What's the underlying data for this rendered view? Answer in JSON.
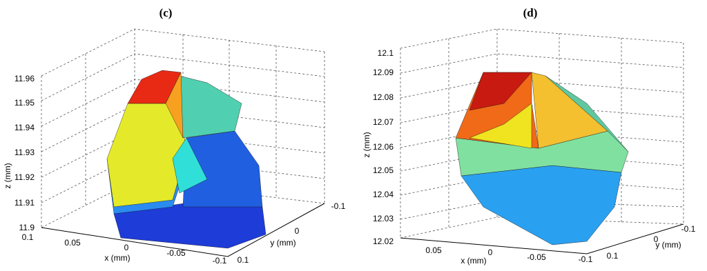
{
  "panels": [
    {
      "label": "(c)",
      "x_axis_label": "x (mm)",
      "y_axis_label": "y (mm)",
      "z_axis_label": "z (mm)",
      "zticks": [
        "11.96",
        "11.95",
        "11.94",
        "11.93",
        "11.92",
        "11.91",
        "11.9"
      ],
      "xticks": [
        "0.1",
        "0.05",
        "0",
        "-0.05",
        "-0.1"
      ],
      "yticks": [
        "-0.1",
        "0",
        "0.1"
      ]
    },
    {
      "label": "(d)",
      "x_axis_label": "x (mm)",
      "y_axis_label": "y (mm)",
      "z_axis_label": "z (mm)",
      "zticks": [
        "12.1",
        "12.09",
        "12.08",
        "12.07",
        "12.06",
        "12.05",
        "12.04",
        "12.03",
        "12.02"
      ],
      "xticks": [
        "0.05",
        "0",
        "-0.05",
        "-0.1"
      ],
      "yticks": [
        "-0.1",
        "0",
        "0.1"
      ]
    }
  ]
}
